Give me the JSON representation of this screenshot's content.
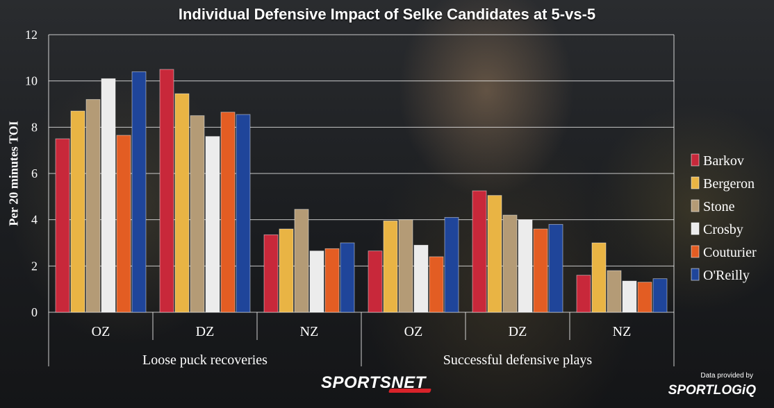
{
  "title": "Individual Defensive Impact of Selke Candidates at 5-vs-5",
  "branding": {
    "sportsnet": "SPORTSNET",
    "provided_by": "Data provided by",
    "sportlogiq": "SPORTLOGiQ"
  },
  "chart_data": {
    "type": "bar",
    "title": "Individual Defensive Impact of Selke Candidates at 5-vs-5",
    "xlabel": "",
    "ylabel": "Per 20 minutes TOI",
    "ylim": [
      0,
      12
    ],
    "yticks": [
      0,
      2,
      4,
      6,
      8,
      10,
      12
    ],
    "grid": true,
    "legend_position": "right",
    "groups": [
      {
        "label": "Loose puck recoveries",
        "categories": [
          "OZ",
          "DZ",
          "NZ"
        ]
      },
      {
        "label": "Successful defensive plays",
        "categories": [
          "OZ",
          "DZ",
          "NZ"
        ]
      }
    ],
    "categories": [
      "OZ",
      "DZ",
      "NZ",
      "OZ",
      "DZ",
      "NZ"
    ],
    "series": [
      {
        "name": "Barkov",
        "color": "#c8283a",
        "values": [
          7.5,
          10.5,
          3.35,
          2.65,
          5.25,
          1.6
        ]
      },
      {
        "name": "Bergeron",
        "color": "#e9b444",
        "values": [
          8.7,
          9.45,
          3.6,
          3.95,
          5.05,
          3.0
        ]
      },
      {
        "name": "Stone",
        "color": "#b49b76",
        "values": [
          9.2,
          8.5,
          4.45,
          4.0,
          4.2,
          1.8
        ]
      },
      {
        "name": "Crosby",
        "color": "#ececec",
        "values": [
          10.1,
          7.6,
          2.65,
          2.9,
          4.0,
          1.35
        ]
      },
      {
        "name": "Couturier",
        "color": "#e35d23",
        "values": [
          7.65,
          8.65,
          2.75,
          2.4,
          3.6,
          1.3
        ]
      },
      {
        "name": "O'Reilly",
        "color": "#1f459a",
        "values": [
          10.4,
          8.55,
          3.0,
          4.1,
          3.8,
          1.45
        ]
      }
    ]
  }
}
